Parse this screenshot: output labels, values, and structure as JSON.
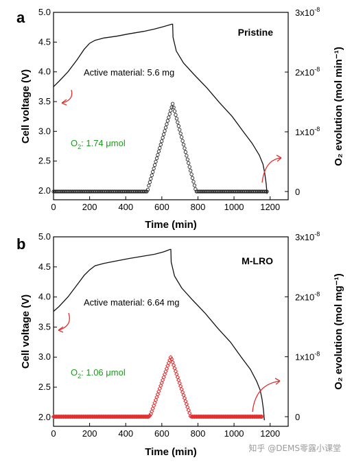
{
  "chart_data": [
    {
      "type": "line",
      "panel_label": "a",
      "name": "Pristine",
      "active_material": "Active material: 5.6 mg",
      "o2_label": "O",
      "o2_sub": "2",
      "o2_value": ": 1.74 μmol",
      "xlabel": "Time (min)",
      "ylabel": "Cell voltage (V)",
      "ylabel_right": "O₂ evolution (mol min⁻¹)",
      "xlim": [
        0,
        1300
      ],
      "ylim": [
        1.85,
        5.0
      ],
      "ylim_right_label_values": [
        0,
        1,
        2,
        3
      ],
      "x_ticks": [
        "0",
        "200",
        "400",
        "600",
        "800",
        "1000",
        "1200"
      ],
      "y_ticks": [
        "2.0",
        "2.5",
        "3.0",
        "3.5",
        "4.0",
        "4.5",
        "5.0"
      ],
      "y_right_ticks": [
        "0",
        "1x10",
        "2x10",
        "3x10"
      ],
      "y_right_tick_exp": "-8",
      "voltage": {
        "x": [
          0,
          30,
          80,
          130,
          170,
          200,
          230,
          280,
          350,
          420,
          500,
          560,
          610,
          655,
          660,
          662,
          680,
          720,
          780,
          850,
          920,
          990,
          1050,
          1100,
          1140,
          1160,
          1170,
          1178,
          1183
        ],
        "y": [
          3.75,
          3.84,
          4.0,
          4.2,
          4.38,
          4.48,
          4.53,
          4.57,
          4.6,
          4.64,
          4.68,
          4.72,
          4.76,
          4.8,
          4.8,
          4.58,
          4.35,
          4.15,
          3.95,
          3.73,
          3.48,
          3.25,
          3.0,
          2.8,
          2.6,
          2.45,
          2.3,
          2.12,
          1.95
        ]
      },
      "o2": {
        "x": [
          0,
          520,
          528,
          660,
          790,
          1185
        ],
        "y": [
          0,
          0,
          0.1,
          1.47,
          0,
          0
        ]
      },
      "marker": "open-circle",
      "marker_color": "#222222"
    },
    {
      "type": "line",
      "panel_label": "b",
      "name": "M-LRO",
      "active_material": "Active material: 6.64 mg",
      "o2_label": "O",
      "o2_sub": "2",
      "o2_value": ": 1.06 μmol",
      "xlabel": "Time (min)",
      "ylabel": "Cell voltage (V)",
      "ylabel_right": "O₂ evolution (mol mg⁻¹)",
      "xlim": [
        0,
        1300
      ],
      "ylim": [
        1.85,
        5.0
      ],
      "x_ticks": [
        "0",
        "200",
        "400",
        "600",
        "800",
        "1000",
        "1200"
      ],
      "y_ticks": [
        "2.0",
        "2.5",
        "3.0",
        "3.5",
        "4.0",
        "4.5",
        "5.0"
      ],
      "y_right_ticks": [
        "0",
        "1x10",
        "2x10",
        "3x10"
      ],
      "y_right_tick_exp": "-8",
      "voltage": {
        "x": [
          0,
          30,
          80,
          130,
          170,
          200,
          230,
          280,
          350,
          420,
          500,
          560,
          610,
          645,
          650,
          652,
          670,
          710,
          770,
          840,
          910,
          980,
          1040,
          1090,
          1125,
          1145,
          1155,
          1163,
          1168
        ],
        "y": [
          3.76,
          3.84,
          4.0,
          4.2,
          4.36,
          4.45,
          4.52,
          4.56,
          4.6,
          4.64,
          4.68,
          4.71,
          4.75,
          4.79,
          4.79,
          4.58,
          4.35,
          4.15,
          3.95,
          3.73,
          3.48,
          3.25,
          3.0,
          2.8,
          2.6,
          2.45,
          2.3,
          2.12,
          1.95
        ]
      },
      "o2": {
        "x": [
          0,
          530,
          540,
          650,
          760,
          1160
        ],
        "y": [
          0,
          0,
          0.05,
          1.0,
          0,
          0
        ]
      },
      "marker": "open-diamond",
      "marker_color": "#e03030"
    }
  ],
  "colors": {
    "o2_text": "#1a9a1a",
    "arrow": "#e03030"
  },
  "watermark": "知乎 @DEMS零露小课堂"
}
